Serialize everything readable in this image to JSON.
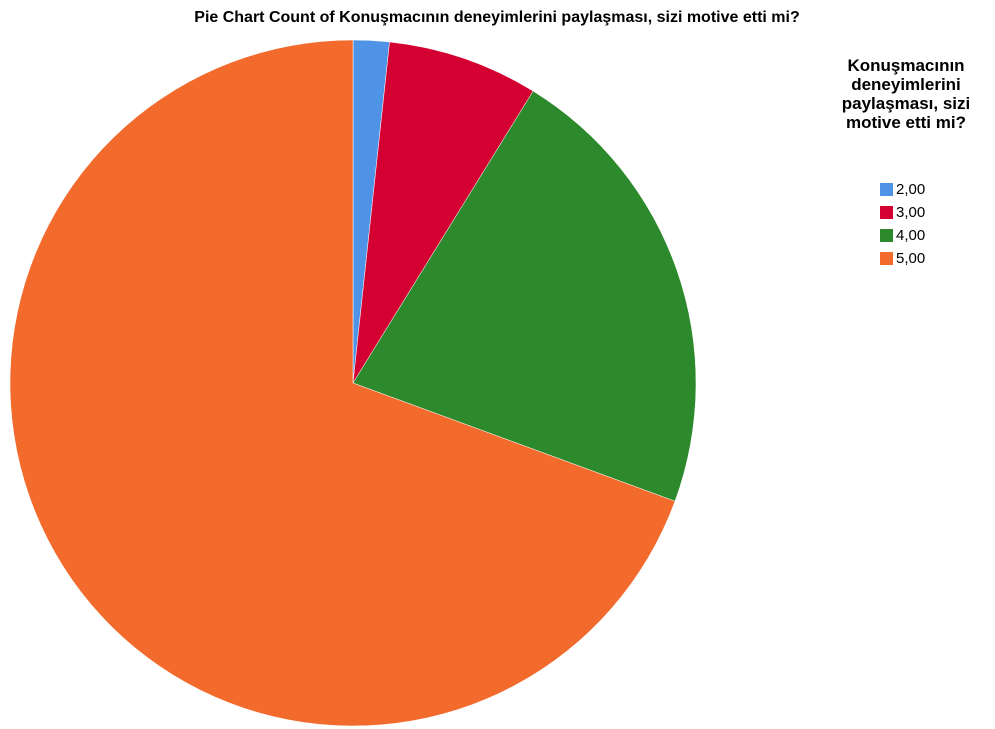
{
  "chart_data": {
    "type": "pie",
    "title": "Pie Chart Count of Konuşmacının deneyimlerini paylaşması, sizi motive etti mi?",
    "legend_title": "Konuşmacının deneyimlerini paylaşması, sizi motive etti mi?",
    "categories": [
      "2,00",
      "3,00",
      "4,00",
      "5,00"
    ],
    "values": [
      1.7,
      7.1,
      21.8,
      69.4
    ],
    "colors": [
      "#4f93e6",
      "#d40032",
      "#2c892c",
      "#f36a2d"
    ],
    "legend": "right"
  }
}
